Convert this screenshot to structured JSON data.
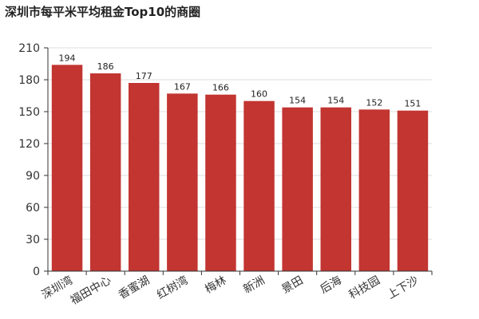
{
  "chart_data": {
    "type": "bar",
    "title": "深圳市每平米平均租金Top10的商圈",
    "xlabel": "",
    "ylabel": "",
    "categories": [
      "深圳湾",
      "福田中心",
      "香蜜湖",
      "红树湾",
      "梅林",
      "新洲",
      "景田",
      "后海",
      "科技园",
      "上下沙"
    ],
    "values": [
      194,
      186,
      177,
      167,
      166,
      160,
      154,
      154,
      152,
      151
    ],
    "ylim": [
      0,
      210
    ],
    "yticks": [
      0,
      30,
      60,
      90,
      120,
      150,
      180,
      210
    ],
    "grid": true,
    "legend": "none",
    "bar_color": "#c23531",
    "grid_color": "#dddddd",
    "axis_color": "#333333"
  }
}
